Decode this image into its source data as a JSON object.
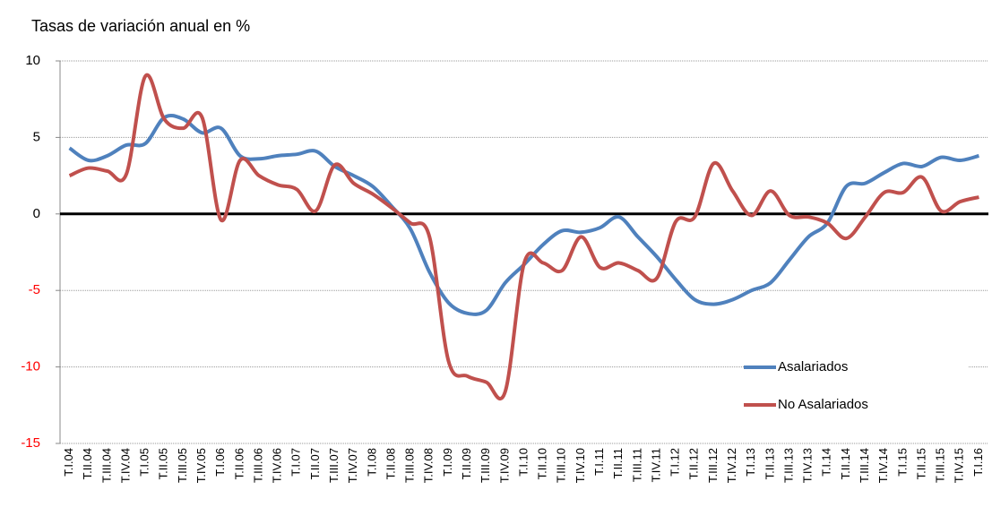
{
  "chart_data": {
    "type": "line",
    "title": "Tasas de variación anual en %",
    "categories": [
      "T.I.04",
      "T.II.04",
      "T.III.04",
      "T.IV.04",
      "T.I.05",
      "T.II.05",
      "T.III.05",
      "T.IV.05",
      "T.I.06",
      "T.II.06",
      "T.III.06",
      "T.IV.06",
      "T.I.07",
      "T.II.07",
      "T.III.07",
      "T.IV.07",
      "T.I.08",
      "T.II.08",
      "T.III.08",
      "T.IV.08",
      "T.I.09",
      "T.II.09",
      "T.III.09",
      "T.IV.09",
      "T.I.10",
      "T.II.10",
      "T.III.10",
      "T.IV.10",
      "T.I.11",
      "T.II.11",
      "T.III.11",
      "T.IV.11",
      "T.I.12",
      "T.II.12",
      "T.III.12",
      "T.IV.12",
      "T.I.13",
      "T.II.13",
      "T.III.13",
      "T.IV.13",
      "T.I.14",
      "T.II.14",
      "T.III.14",
      "T.IV.14",
      "T.I.15",
      "T.II.15",
      "T.III.15",
      "T.IV.15",
      "T.I.16"
    ],
    "series": [
      {
        "name": "Asalariados",
        "color": "#4f81bd",
        "values": [
          4.3,
          3.5,
          3.8,
          4.5,
          4.6,
          6.3,
          6.2,
          5.3,
          5.6,
          3.8,
          3.6,
          3.8,
          3.9,
          4.1,
          3.1,
          2.5,
          1.8,
          0.5,
          -1,
          -3.8,
          -5.8,
          -6.5,
          -6.3,
          -4.5,
          -3.3,
          -2,
          -1.1,
          -1.2,
          -0.9,
          -0.2,
          -1.5,
          -2.8,
          -4.3,
          -5.6,
          -5.9,
          -5.6,
          -5,
          -4.5,
          -3,
          -1.5,
          -0.6,
          1.8,
          2,
          2.7,
          3.3,
          3.1,
          3.7,
          3.5,
          3.8
        ]
      },
      {
        "name": "No Asalariados",
        "color": "#c0504d",
        "values": [
          2.5,
          3,
          2.8,
          2.6,
          9,
          6.2,
          5.6,
          6.3,
          -0.4,
          3.5,
          2.5,
          1.9,
          1.6,
          0.2,
          3.2,
          2,
          1.3,
          0.4,
          -0.6,
          -1.5,
          -9.6,
          -10.6,
          -11,
          -11.6,
          -3.2,
          -3.2,
          -3.7,
          -1.5,
          -3.5,
          -3.2,
          -3.7,
          -4.2,
          -0.5,
          -0.2,
          3.3,
          1.5,
          -0.1,
          1.5,
          -0.1,
          -0.2,
          -0.6,
          -1.6,
          -0.2,
          1.4,
          1.4,
          2.4,
          0.2,
          0.8,
          1.1
        ]
      }
    ],
    "ylim": [
      -15,
      10
    ],
    "yticks": [
      -15,
      -10,
      -5,
      0,
      5,
      10
    ],
    "grid": true,
    "negative_tick_color": "#ff0000",
    "legend": "lower-right"
  }
}
